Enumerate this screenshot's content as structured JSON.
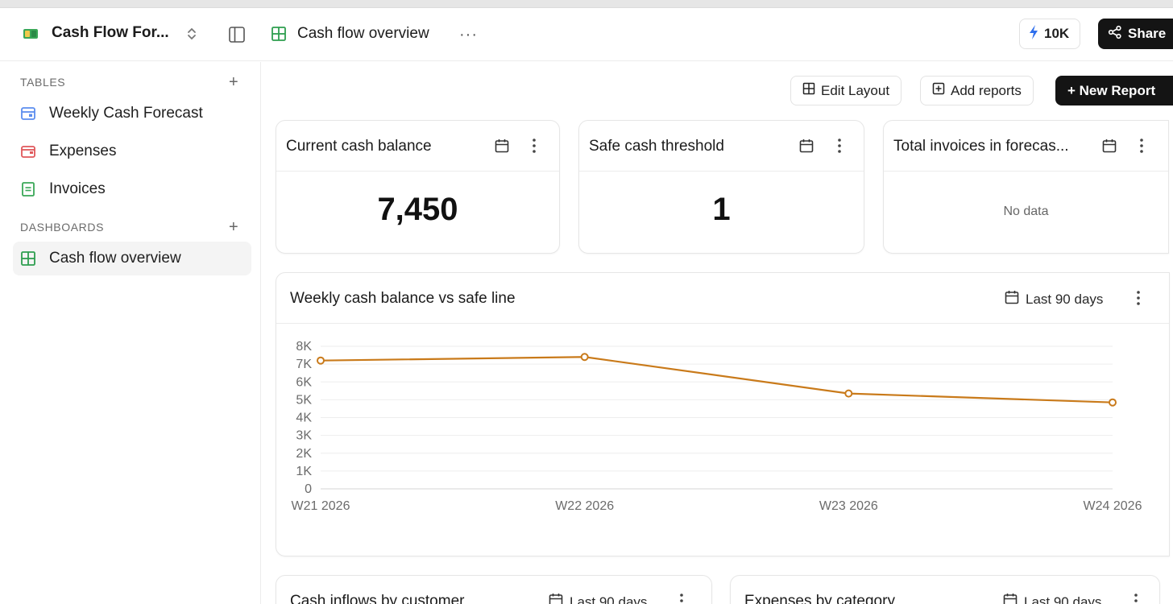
{
  "header": {
    "app_title": "Cash Flow For...",
    "tab_title": "Cash flow overview",
    "more_label": "···",
    "credits_label": "10K",
    "share_label": "Share"
  },
  "sidebar": {
    "tables_label": "TABLES",
    "dashboards_label": "DASHBOARDS",
    "add_label": "+",
    "tables": [
      {
        "label": "Weekly Cash Forecast",
        "icon": "calendar-table-icon",
        "color": "#5b8def"
      },
      {
        "label": "Expenses",
        "icon": "wallet-icon",
        "color": "#e0585b"
      },
      {
        "label": "Invoices",
        "icon": "document-icon",
        "color": "#3aa757"
      }
    ],
    "dashboards": [
      {
        "label": "Cash flow overview",
        "icon": "grid-icon",
        "color": "#2e9e4f",
        "active": true
      }
    ]
  },
  "toolbar": {
    "edit_layout_label": "Edit Layout",
    "add_reports_label": "Add reports",
    "new_report_label": "+ New Report"
  },
  "metrics": [
    {
      "title": "Current cash balance",
      "value": "7,450"
    },
    {
      "title": "Safe cash threshold",
      "value": "1"
    },
    {
      "title": "Total invoices in forecas...",
      "value": "No data"
    }
  ],
  "line_card": {
    "title": "Weekly cash balance vs safe line",
    "range_label": "Last 90 days"
  },
  "bottom_cards": [
    {
      "title": "Cash inflows by customer",
      "range_label": "Last 90 days"
    },
    {
      "title": "Expenses by category",
      "range_label": "Last 90 days"
    }
  ],
  "chart_data": {
    "type": "line",
    "title": "Weekly cash balance vs safe line",
    "x": [
      "W21 2026",
      "W22 2026",
      "W23 2026",
      "W24 2026"
    ],
    "series": [
      {
        "values": [
          7200,
          7400,
          5350,
          4850
        ],
        "color": "#c97a1a"
      }
    ],
    "yticks": [
      "0",
      "1K",
      "2K",
      "3K",
      "4K",
      "5K",
      "6K",
      "7K",
      "8K"
    ],
    "ylim": [
      0,
      8000
    ],
    "grid": true,
    "legend": "none"
  },
  "colors": {
    "accent_dark": "#141414",
    "line": "#c97a1a",
    "credits_bolt": "#2f6fed"
  }
}
